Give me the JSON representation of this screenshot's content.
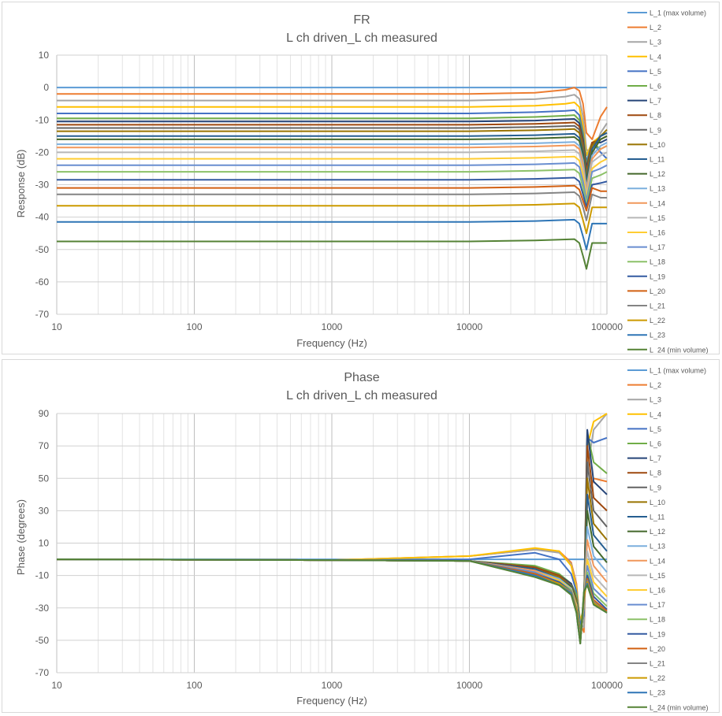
{
  "chart_data": [
    {
      "type": "line",
      "title": "FR",
      "subtitle": "L ch driven_L ch measured",
      "xlabel": "Frequency (Hz)",
      "ylabel": "Response (dB)",
      "xscale": "log",
      "xlim": [
        10,
        100000
      ],
      "ylim": [
        -70,
        10
      ],
      "xticks": [
        "10",
        "100",
        "1000",
        "10000",
        "100000"
      ],
      "yticks": [
        "10",
        "0",
        "-10",
        "-20",
        "-30",
        "-40",
        "-50",
        "-60",
        "-70"
      ],
      "grid": true,
      "legend_position": "right",
      "x": [
        10,
        1000,
        10000,
        30000,
        50000,
        58000,
        63000,
        67000,
        71000,
        78000,
        90000,
        100000
      ],
      "series": [
        {
          "name": "L_1 (max volume)",
          "values": [
            0,
            0,
            0,
            0,
            0,
            0,
            0,
            0,
            0,
            0,
            0,
            0
          ]
        },
        {
          "name": "L_2",
          "values": [
            -2,
            -2,
            -2,
            -1.6,
            -0.7,
            0,
            -1,
            -5,
            -14,
            -16,
            -9,
            -6
          ]
        },
        {
          "name": "L_3",
          "values": [
            -4,
            -4,
            -4,
            -3.6,
            -2.8,
            -2.2,
            -3.5,
            -9,
            -19,
            -21,
            -14,
            -11
          ]
        },
        {
          "name": "L_4",
          "values": [
            -6,
            -6,
            -6,
            -5.6,
            -5,
            -4.6,
            -6,
            -12,
            -21,
            -17,
            -15,
            -14
          ]
        },
        {
          "name": "L_5",
          "values": [
            -8,
            -8,
            -8,
            -7.6,
            -7.2,
            -7,
            -8.5,
            -14,
            -23,
            -17,
            -20,
            -22
          ]
        },
        {
          "name": "L_6",
          "values": [
            -9.5,
            -9.5,
            -9.5,
            -9.1,
            -8.7,
            -8.5,
            -10,
            -15,
            -24,
            -17,
            -19,
            -18
          ]
        },
        {
          "name": "L_7",
          "values": [
            -10.5,
            -10.5,
            -10.5,
            -10.2,
            -9.8,
            -9.7,
            -11,
            -16,
            -25,
            -17,
            -17,
            -16
          ]
        },
        {
          "name": "L_8",
          "values": [
            -11.5,
            -11.5,
            -11.5,
            -11.2,
            -10.9,
            -10.8,
            -12,
            -17,
            -26,
            -17,
            -16,
            -15
          ]
        },
        {
          "name": "L_9",
          "values": [
            -12.5,
            -12.5,
            -12.5,
            -12.2,
            -11.9,
            -11.8,
            -13,
            -18,
            -27,
            -18,
            -15,
            -14
          ]
        },
        {
          "name": "L_10",
          "values": [
            -13.5,
            -13.5,
            -13.5,
            -13.2,
            -12.9,
            -12.8,
            -14,
            -19,
            -28,
            -18,
            -15,
            -13
          ]
        },
        {
          "name": "L_11",
          "values": [
            -15,
            -15,
            -15,
            -14.7,
            -14.4,
            -14.3,
            -15.5,
            -20,
            -29,
            -19,
            -15,
            -14
          ]
        },
        {
          "name": "L_12",
          "values": [
            -16,
            -16,
            -16,
            -15.7,
            -15.4,
            -15.3,
            -16.5,
            -21,
            -30,
            -20,
            -16,
            -15
          ]
        },
        {
          "name": "L_13",
          "values": [
            -17.5,
            -17.5,
            -17.5,
            -17.2,
            -16.9,
            -16.8,
            -18,
            -22.5,
            -31,
            -21,
            -18,
            -17
          ]
        },
        {
          "name": "L_14",
          "values": [
            -18.5,
            -18.5,
            -18.5,
            -18.2,
            -17.9,
            -17.8,
            -19,
            -23.5,
            -32,
            -22,
            -19,
            -18
          ]
        },
        {
          "name": "L_15",
          "values": [
            -20,
            -20,
            -20,
            -19.7,
            -19.4,
            -19.3,
            -20.5,
            -25,
            -33,
            -23,
            -21,
            -20
          ]
        },
        {
          "name": "L_16",
          "values": [
            -22,
            -22,
            -22,
            -21.7,
            -21.4,
            -21.3,
            -22.5,
            -27,
            -34,
            -25,
            -23,
            -22
          ]
        },
        {
          "name": "L_17",
          "values": [
            -24,
            -24,
            -24,
            -23.7,
            -23.4,
            -23.3,
            -24.5,
            -29,
            -35,
            -26,
            -25,
            -24
          ]
        },
        {
          "name": "L_18",
          "values": [
            -26,
            -26,
            -26,
            -25.7,
            -25.4,
            -25.3,
            -26.5,
            -31,
            -36,
            -28,
            -27,
            -26
          ]
        },
        {
          "name": "L_19",
          "values": [
            -28.5,
            -28.5,
            -28.5,
            -28.2,
            -27.9,
            -27.8,
            -29,
            -33,
            -37,
            -30,
            -29.5,
            -29
          ]
        },
        {
          "name": "L_20",
          "values": [
            -31,
            -31,
            -31,
            -30.7,
            -30.4,
            -30.3,
            -31.5,
            -35,
            -38,
            -31,
            -32,
            -32
          ]
        },
        {
          "name": "L_21",
          "values": [
            -33,
            -33,
            -33,
            -32.7,
            -32.4,
            -32.3,
            -33.5,
            -37,
            -41,
            -33,
            -34,
            -34
          ]
        },
        {
          "name": "L_22",
          "values": [
            -36.5,
            -36.5,
            -36.5,
            -36.2,
            -35.9,
            -35.8,
            -37,
            -41,
            -45,
            -37,
            -37,
            -37
          ]
        },
        {
          "name": "L_23",
          "values": [
            -41.5,
            -41.5,
            -41.5,
            -41.2,
            -40.9,
            -40.8,
            -42,
            -46,
            -50,
            -42,
            -42,
            -42
          ]
        },
        {
          "name": "L_24 (min volume)",
          "values": [
            -47.5,
            -47.5,
            -47.5,
            -47.2,
            -46.9,
            -46.8,
            -48,
            -52,
            -56,
            -48,
            -48,
            -48
          ]
        }
      ],
      "colors": [
        "#5b9bd5",
        "#ed7d31",
        "#a5a5a5",
        "#ffc000",
        "#4472c4",
        "#70ad47",
        "#264478",
        "#9e480e",
        "#636363",
        "#997300",
        "#255e91",
        "#43682b",
        "#7cafdd",
        "#f1975a",
        "#b7b7b7",
        "#ffcd33",
        "#698ed0",
        "#8cc168",
        "#335aa1",
        "#d26012",
        "#848484",
        "#cc9a00",
        "#2e75b6",
        "#548235"
      ]
    },
    {
      "type": "line",
      "title": "Phase",
      "subtitle": "L ch driven_L ch measured",
      "xlabel": "Frequency (Hz)",
      "ylabel": "Phase (degrees)",
      "xscale": "log",
      "xlim": [
        10,
        100000
      ],
      "ylim": [
        -70,
        90
      ],
      "xticks": [
        "10",
        "100",
        "1000",
        "10000",
        "100000"
      ],
      "yticks": [
        "90",
        "70",
        "50",
        "30",
        "10",
        "-10",
        "-30",
        "-50",
        "-70"
      ],
      "grid": true,
      "legend_position": "right",
      "x": [
        10,
        1000,
        10000,
        30000,
        45000,
        55000,
        60000,
        64000,
        68000,
        72000,
        80000,
        100000
      ],
      "series": [
        {
          "name": "L_1 (max volume)",
          "values": [
            0,
            0,
            0,
            0,
            0,
            0,
            0,
            0,
            0,
            0,
            0,
            0
          ]
        },
        {
          "name": "L_2",
          "values": [
            0,
            -0.5,
            2,
            6,
            5,
            -2,
            -15,
            -40,
            -45,
            35,
            50,
            48
          ]
        },
        {
          "name": "L_3",
          "values": [
            0,
            -0.5,
            2,
            6,
            4,
            -3,
            -17,
            -40,
            -42,
            55,
            80,
            90
          ]
        },
        {
          "name": "L_4",
          "values": [
            0,
            -0.5,
            2,
            7,
            5,
            -4,
            -18,
            -38,
            -30,
            70,
            85,
            90
          ]
        },
        {
          "name": "L_5",
          "values": [
            0,
            -0.5,
            0,
            4,
            0,
            -9,
            -20,
            -40,
            -35,
            75,
            72,
            75
          ]
        },
        {
          "name": "L_6",
          "values": [
            0,
            -0.5,
            -1,
            -4,
            -9,
            -15,
            -22,
            -45,
            -30,
            78,
            60,
            53
          ]
        },
        {
          "name": "L_7",
          "values": [
            0,
            -0.5,
            -1,
            -5,
            -10,
            -15,
            -25,
            -48,
            -30,
            80,
            48,
            40
          ]
        },
        {
          "name": "L_8",
          "values": [
            0,
            -0.5,
            -1,
            -5,
            -10,
            -16,
            -25,
            -48,
            -30,
            70,
            38,
            30
          ]
        },
        {
          "name": "L_9",
          "values": [
            0,
            -0.5,
            -1,
            -6,
            -11,
            -16,
            -26,
            -48,
            -30,
            60,
            30,
            20
          ]
        },
        {
          "name": "L_10",
          "values": [
            0,
            -0.5,
            -1,
            -6,
            -11,
            -17,
            -26,
            -48,
            -30,
            50,
            22,
            12
          ]
        },
        {
          "name": "L_11",
          "values": [
            0,
            -0.5,
            -1,
            -6,
            -12,
            -17,
            -27,
            -49,
            -30,
            40,
            15,
            5
          ]
        },
        {
          "name": "L_12",
          "values": [
            0,
            -0.5,
            -1,
            -7,
            -12,
            -17,
            -27,
            -49,
            -30,
            30,
            8,
            -2
          ]
        },
        {
          "name": "L_13",
          "values": [
            0,
            -0.5,
            -1,
            -7,
            -12,
            -18,
            -28,
            -49,
            -30,
            20,
            2,
            -8
          ]
        },
        {
          "name": "L_14",
          "values": [
            0,
            -0.5,
            -1,
            -7,
            -13,
            -18,
            -28,
            -50,
            -28,
            12,
            -4,
            -14
          ]
        },
        {
          "name": "L_15",
          "values": [
            0,
            -0.5,
            -1,
            -8,
            -13,
            -18,
            -29,
            -50,
            -28,
            5,
            -10,
            -19
          ]
        },
        {
          "name": "L_16",
          "values": [
            0,
            -0.5,
            -1,
            -8,
            -13,
            -19,
            -29,
            -50,
            -26,
            0,
            -14,
            -23
          ]
        },
        {
          "name": "L_17",
          "values": [
            0,
            -0.5,
            -1,
            -8,
            -14,
            -19,
            -30,
            -50,
            -26,
            -4,
            -18,
            -26
          ]
        },
        {
          "name": "L_18",
          "values": [
            0,
            -0.5,
            -1,
            -9,
            -14,
            -19,
            -30,
            -51,
            -26,
            -8,
            -21,
            -29
          ]
        },
        {
          "name": "L_19",
          "values": [
            0,
            -0.5,
            -1,
            -9,
            -14,
            -20,
            -31,
            -51,
            -24,
            -10,
            -23,
            -31
          ]
        },
        {
          "name": "L_20",
          "values": [
            0,
            -0.5,
            -1,
            -9,
            -15,
            -20,
            -31,
            -51,
            -24,
            -12,
            -25,
            -32
          ]
        },
        {
          "name": "L_21",
          "values": [
            0,
            -0.5,
            -1,
            -10,
            -15,
            -20,
            -32,
            -52,
            -22,
            -13,
            -26,
            -33
          ]
        },
        {
          "name": "L_22",
          "values": [
            0,
            -0.5,
            -1,
            -10,
            -15,
            -21,
            -32,
            -52,
            -22,
            -14,
            -27,
            -33
          ]
        },
        {
          "name": "L_23",
          "values": [
            0,
            -0.5,
            -1,
            -10,
            -16,
            -21,
            -33,
            -52,
            -20,
            -15,
            -28,
            -33
          ]
        },
        {
          "name": "L_24 (min volume)",
          "values": [
            0,
            -0.5,
            -1,
            -11,
            -16,
            -22,
            -33,
            -52,
            -20,
            -16,
            -28,
            -33
          ]
        }
      ],
      "colors": [
        "#5b9bd5",
        "#ed7d31",
        "#a5a5a5",
        "#ffc000",
        "#4472c4",
        "#70ad47",
        "#264478",
        "#9e480e",
        "#636363",
        "#997300",
        "#255e91",
        "#43682b",
        "#7cafdd",
        "#f1975a",
        "#b7b7b7",
        "#ffcd33",
        "#698ed0",
        "#8cc168",
        "#335aa1",
        "#d26012",
        "#848484",
        "#cc9a00",
        "#2e75b6",
        "#548235"
      ]
    }
  ]
}
